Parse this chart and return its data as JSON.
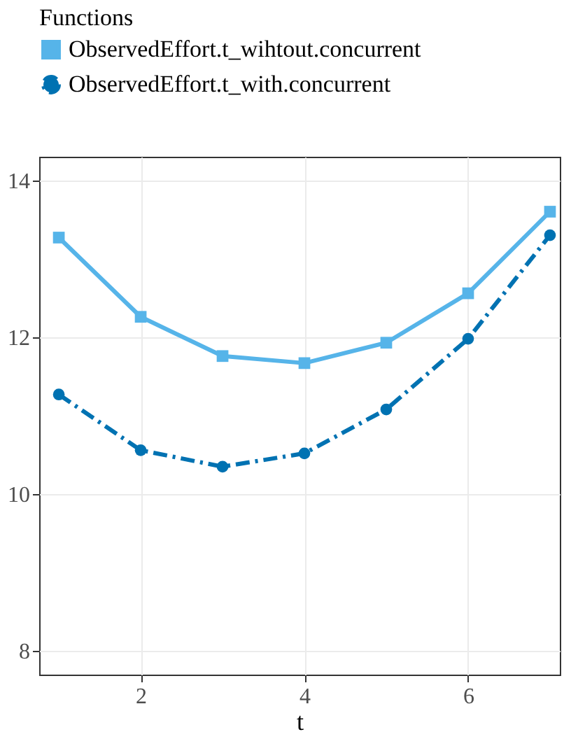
{
  "chart_data": {
    "type": "line",
    "xlabel": "t",
    "legend_title": "Functions",
    "x": [
      1,
      2,
      3,
      4,
      5,
      6,
      7
    ],
    "series": [
      {
        "name": "ObservedEffort.t_wihtout.concurrent",
        "color": "#56b4e9",
        "marker": "square",
        "line_style": "solid",
        "values": [
          13.27,
          12.26,
          11.76,
          11.67,
          11.93,
          12.56,
          13.6
        ]
      },
      {
        "name": "ObservedEffort.t_with.concurrent",
        "color": "#0072b2",
        "marker": "circle",
        "line_style": "dashed",
        "values": [
          11.27,
          10.56,
          10.35,
          10.52,
          11.08,
          11.98,
          13.3
        ]
      }
    ],
    "xlim": [
      0.76,
      7.12
    ],
    "xticks": [
      2,
      4,
      6
    ],
    "ylim": [
      7.7,
      14.3
    ],
    "yticks": [
      8,
      10,
      12,
      14
    ],
    "grid": true,
    "legend": "top left"
  }
}
